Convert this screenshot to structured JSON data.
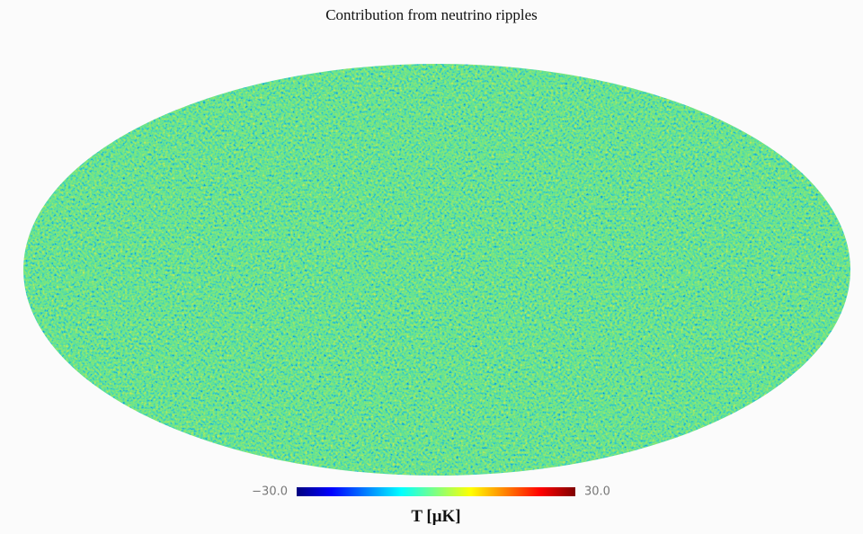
{
  "chart_data": {
    "type": "skymap",
    "title": "Contribution from neutrino ripples",
    "projection": "mollweide",
    "colorbar": {
      "lim": [
        -30,
        30
      ],
      "ticks": [
        {
          "value": -30,
          "label": "−30.0"
        },
        {
          "value": 30,
          "label": "30.0"
        }
      ],
      "label": "T [μK]",
      "colormap": [
        "#00007f",
        "#0000ff",
        "#0080ff",
        "#00ffff",
        "#80ff80",
        "#ffff00",
        "#ff8000",
        "#ff0000",
        "#7f0000"
      ]
    }
  }
}
